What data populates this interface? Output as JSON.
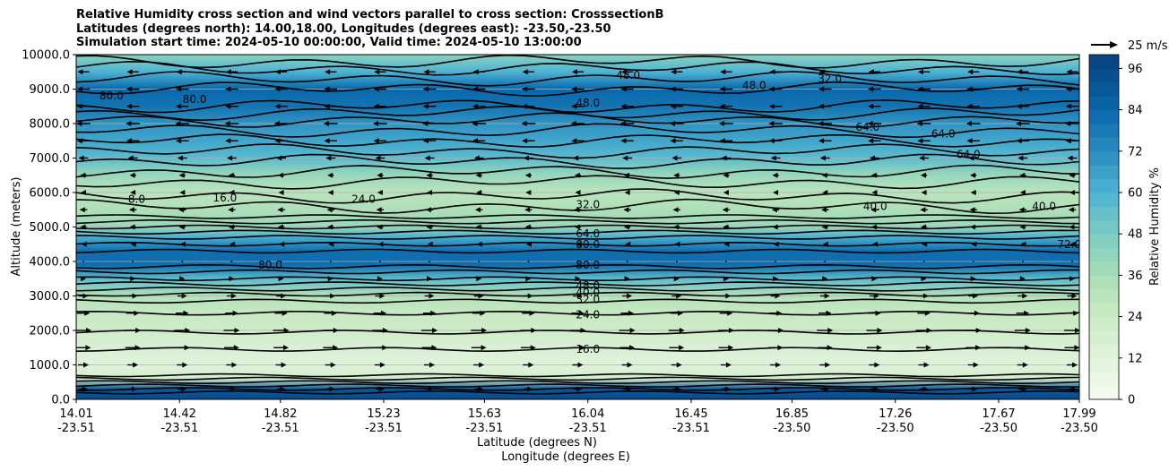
{
  "chart_data": {
    "type": "contour",
    "title_lines": [
      "Relative Humidity cross section and wind vectors parallel to cross section: CrosssectionB",
      "Latitudes (degrees north): 14.00,18.00, Longitudes (degrees east): -23.50,-23.50",
      "Simulation start time: 2024-05-10 00:00:00, Valid time: 2024-05-10 13:00:00"
    ],
    "ylabel": "Altitude (meters)",
    "xlabel": "Latitude (degrees N)",
    "xlabel2": "Longitude (degrees E)",
    "ylim": [
      0,
      10000
    ],
    "y_ticks": [
      "0.0",
      "1000.0",
      "2000.0",
      "3000.0",
      "4000.0",
      "5000.0",
      "6000.0",
      "7000.0",
      "8000.0",
      "9000.0",
      "10000.0"
    ],
    "lat_ticks": [
      "14.01",
      "14.42",
      "14.82",
      "15.23",
      "15.63",
      "16.04",
      "16.45",
      "16.85",
      "17.26",
      "17.67",
      "17.99"
    ],
    "lon_ticks": [
      "-23.51",
      "-23.51",
      "-23.51",
      "-23.51",
      "-23.51",
      "-23.51",
      "-23.51",
      "-23.50",
      "-23.50",
      "-23.50",
      "-23.50"
    ],
    "colorbar": {
      "label": "Relative Humidity %",
      "ticks": [
        "0",
        "12",
        "24",
        "36",
        "48",
        "60",
        "72",
        "84",
        "96"
      ],
      "range": [
        0,
        100
      ]
    },
    "quiver_key": "25 m/s",
    "rh_profile": [
      {
        "alt": 0,
        "rh": 96
      },
      {
        "alt": 300,
        "rh": 90
      },
      {
        "alt": 600,
        "rh": 20
      },
      {
        "alt": 1000,
        "rh": 12
      },
      {
        "alt": 1500,
        "rh": 16
      },
      {
        "alt": 2000,
        "rh": 22
      },
      {
        "alt": 2500,
        "rh": 26
      },
      {
        "alt": 3000,
        "rh": 32
      },
      {
        "alt": 3500,
        "rh": 56
      },
      {
        "alt": 3900,
        "rh": 82
      },
      {
        "alt": 4300,
        "rh": 82
      },
      {
        "alt": 4700,
        "rh": 62
      },
      {
        "alt": 5000,
        "rh": 40
      },
      {
        "alt": 5500,
        "rh": 34
      },
      {
        "alt": 6000,
        "rh": 30
      },
      {
        "alt": 6500,
        "rh": 40
      },
      {
        "alt": 7000,
        "rh": 56
      },
      {
        "alt": 7500,
        "rh": 64
      },
      {
        "alt": 8000,
        "rh": 70
      },
      {
        "alt": 8500,
        "rh": 80
      },
      {
        "alt": 9000,
        "rh": 84
      },
      {
        "alt": 9500,
        "rh": 60
      },
      {
        "alt": 10000,
        "rh": 44
      }
    ],
    "contour_labels": [
      {
        "text": "80.0",
        "lat": 16.04,
        "alt": 4500
      },
      {
        "text": "64.0",
        "lat": 16.04,
        "alt": 4800
      },
      {
        "text": "80.0",
        "lat": 16.04,
        "alt": 3900
      },
      {
        "text": "48.0",
        "lat": 16.04,
        "alt": 3300
      },
      {
        "text": "40.0",
        "lat": 16.04,
        "alt": 3100
      },
      {
        "text": "32.0",
        "lat": 16.04,
        "alt": 2900
      },
      {
        "text": "24.0",
        "lat": 16.04,
        "alt": 2450
      },
      {
        "text": "16.0",
        "lat": 16.04,
        "alt": 1450
      },
      {
        "text": "32.0",
        "lat": 16.04,
        "alt": 5650
      },
      {
        "text": "48.0",
        "lat": 16.04,
        "alt": 8600
      },
      {
        "text": "48.0",
        "lat": 16.2,
        "alt": 9400
      },
      {
        "text": "48.0",
        "lat": 16.7,
        "alt": 9100
      },
      {
        "text": "32.0",
        "lat": 17.0,
        "alt": 9300
      },
      {
        "text": "64.0",
        "lat": 17.15,
        "alt": 7900
      },
      {
        "text": "64.0",
        "lat": 17.45,
        "alt": 7700
      },
      {
        "text": "64.0",
        "lat": 17.55,
        "alt": 7100
      },
      {
        "text": "40.0",
        "lat": 17.18,
        "alt": 5600
      },
      {
        "text": "40.0",
        "lat": 17.85,
        "alt": 5600
      },
      {
        "text": "80.0",
        "lat": 14.15,
        "alt": 8800
      },
      {
        "text": "80.0",
        "lat": 14.48,
        "alt": 8700
      },
      {
        "text": "16.0",
        "lat": 14.6,
        "alt": 5850
      },
      {
        "text": "24.0",
        "lat": 15.15,
        "alt": 5800
      },
      {
        "text": "8.0",
        "lat": 14.25,
        "alt": 5800
      },
      {
        "text": "80.0",
        "lat": 14.78,
        "alt": 3900
      },
      {
        "text": "72.0",
        "lat": 17.95,
        "alt": 4500
      }
    ],
    "wind": {
      "levels_m": [
        300,
        1000,
        1500,
        2000,
        2500,
        3000,
        3500,
        4000,
        4500,
        5000,
        5500,
        6000,
        6500,
        7000,
        7500,
        8000,
        8500,
        9000,
        9500
      ],
      "u_ms": [
        8,
        10,
        14,
        15,
        12,
        9,
        5,
        0,
        -4,
        -6,
        -7,
        -5,
        -6,
        -9,
        -12,
        -13,
        -12,
        -12,
        -11
      ]
    }
  }
}
